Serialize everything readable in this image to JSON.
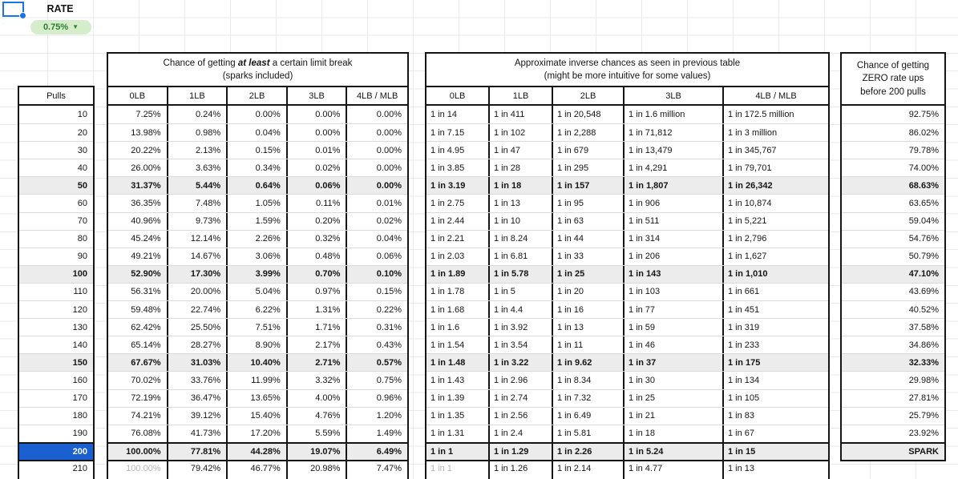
{
  "header": {
    "rate_label": "RATE",
    "rate_value": "0.75%"
  },
  "pulls_column": {
    "header": "Pulls",
    "values": [
      "10",
      "20",
      "30",
      "40",
      "50",
      "60",
      "70",
      "80",
      "90",
      "100",
      "110",
      "120",
      "130",
      "140",
      "150",
      "160",
      "170",
      "180",
      "190",
      "200"
    ],
    "partial_value": "210"
  },
  "at_least_table": {
    "title_prefix": "Chance of getting ",
    "title_emphasis": "at least",
    "title_suffix": " a certain limit break",
    "subtitle": "(sparks included)",
    "columns": [
      "0LB",
      "1LB",
      "2LB",
      "3LB",
      "4LB / MLB"
    ],
    "rows": [
      [
        "7.25%",
        "0.24%",
        "0.00%",
        "0.00%",
        "0.00%"
      ],
      [
        "13.98%",
        "0.98%",
        "0.04%",
        "0.00%",
        "0.00%"
      ],
      [
        "20.22%",
        "2.13%",
        "0.15%",
        "0.01%",
        "0.00%"
      ],
      [
        "26.00%",
        "3.63%",
        "0.34%",
        "0.02%",
        "0.00%"
      ],
      [
        "31.37%",
        "5.44%",
        "0.64%",
        "0.06%",
        "0.00%"
      ],
      [
        "36.35%",
        "7.48%",
        "1.05%",
        "0.11%",
        "0.01%"
      ],
      [
        "40.96%",
        "9.73%",
        "1.59%",
        "0.20%",
        "0.02%"
      ],
      [
        "45.24%",
        "12.14%",
        "2.26%",
        "0.32%",
        "0.04%"
      ],
      [
        "49.21%",
        "14.67%",
        "3.06%",
        "0.48%",
        "0.06%"
      ],
      [
        "52.90%",
        "17.30%",
        "3.99%",
        "0.70%",
        "0.10%"
      ],
      [
        "56.31%",
        "20.00%",
        "5.04%",
        "0.97%",
        "0.15%"
      ],
      [
        "59.48%",
        "22.74%",
        "6.22%",
        "1.31%",
        "0.22%"
      ],
      [
        "62.42%",
        "25.50%",
        "7.51%",
        "1.71%",
        "0.31%"
      ],
      [
        "65.14%",
        "28.27%",
        "8.90%",
        "2.17%",
        "0.43%"
      ],
      [
        "67.67%",
        "31.03%",
        "10.40%",
        "2.71%",
        "0.57%"
      ],
      [
        "70.02%",
        "33.76%",
        "11.99%",
        "3.32%",
        "0.75%"
      ],
      [
        "72.19%",
        "36.47%",
        "13.65%",
        "4.00%",
        "0.96%"
      ],
      [
        "74.21%",
        "39.12%",
        "15.40%",
        "4.76%",
        "1.20%"
      ],
      [
        "76.08%",
        "41.73%",
        "17.20%",
        "5.59%",
        "1.49%"
      ],
      [
        "100.00%",
        "77.81%",
        "44.28%",
        "19.07%",
        "6.49%"
      ]
    ],
    "partial_row": [
      "100.00%",
      "79.42%",
      "46.77%",
      "20.98%",
      "7.47%"
    ]
  },
  "inverse_table": {
    "title_line1": "Approximate inverse chances as seen in previous table",
    "title_line2": "(might be more intuitive for some values)",
    "columns": [
      "0LB",
      "1LB",
      "2LB",
      "3LB",
      "4LB / MLB"
    ],
    "rows": [
      [
        "1 in 14",
        "1 in 411",
        "1 in 20,548",
        "1 in 1.6 million",
        "1 in 172.5 million"
      ],
      [
        "1 in 7.15",
        "1 in 102",
        "1 in 2,288",
        "1 in 71,812",
        "1 in 3 million"
      ],
      [
        "1 in 4.95",
        "1 in 47",
        "1 in 679",
        "1 in 13,479",
        "1 in 345,767"
      ],
      [
        "1 in 3.85",
        "1 in 28",
        "1 in 295",
        "1 in 4,291",
        "1 in 79,701"
      ],
      [
        "1 in 3.19",
        "1 in 18",
        "1 in 157",
        "1 in 1,807",
        "1 in 26,342"
      ],
      [
        "1 in 2.75",
        "1 in 13",
        "1 in 95",
        "1 in 906",
        "1 in 10,874"
      ],
      [
        "1 in 2.44",
        "1 in 10",
        "1 in 63",
        "1 in 511",
        "1 in 5,221"
      ],
      [
        "1 in 2.21",
        "1 in 8.24",
        "1 in 44",
        "1 in 314",
        "1 in 2,796"
      ],
      [
        "1 in 2.03",
        "1 in 6.81",
        "1 in 33",
        "1 in 206",
        "1 in 1,627"
      ],
      [
        "1 in 1.89",
        "1 in 5.78",
        "1 in 25",
        "1 in 143",
        "1 in 1,010"
      ],
      [
        "1 in 1.78",
        "1 in 5",
        "1 in 20",
        "1 in 103",
        "1 in 661"
      ],
      [
        "1 in 1.68",
        "1 in 4.4",
        "1 in 16",
        "1 in 77",
        "1 in 451"
      ],
      [
        "1 in 1.6",
        "1 in 3.92",
        "1 in 13",
        "1 in 59",
        "1 in 319"
      ],
      [
        "1 in 1.54",
        "1 in 3.54",
        "1 in 11",
        "1 in 46",
        "1 in 233"
      ],
      [
        "1 in 1.48",
        "1 in 3.22",
        "1 in 9.62",
        "1 in 37",
        "1 in 175"
      ],
      [
        "1 in 1.43",
        "1 in 2.96",
        "1 in 8.34",
        "1 in 30",
        "1 in 134"
      ],
      [
        "1 in 1.39",
        "1 in 2.74",
        "1 in 7.32",
        "1 in 25",
        "1 in 105"
      ],
      [
        "1 in 1.35",
        "1 in 2.56",
        "1 in 6.49",
        "1 in 21",
        "1 in 83"
      ],
      [
        "1 in 1.31",
        "1 in 2.4",
        "1 in 5.81",
        "1 in 18",
        "1 in 67"
      ],
      [
        "1 in 1",
        "1 in 1.29",
        "1 in 2.26",
        "1 in 5.24",
        "1 in 15"
      ]
    ],
    "partial_row": [
      "1 in 1",
      "1 in 1.26",
      "1 in 2.14",
      "1 in 4.77",
      "1 in 13"
    ]
  },
  "zero_column": {
    "title_lines": [
      "Chance of getting",
      "ZERO rate ups",
      "before 200 pulls"
    ],
    "values": [
      "92.75%",
      "86.02%",
      "79.78%",
      "74.00%",
      "68.63%",
      "63.65%",
      "59.04%",
      "54.76%",
      "50.79%",
      "47.10%",
      "43.69%",
      "40.52%",
      "37.58%",
      "34.86%",
      "32.33%",
      "29.98%",
      "27.81%",
      "25.79%",
      "23.92%",
      "SPARK"
    ]
  },
  "milestone_row_indexes": [
    4,
    9,
    14,
    19
  ],
  "colors": {
    "accent_blue": "#1a5fd0",
    "selection_blue": "#1a73e8",
    "chip_green_bg": "#d6edcc",
    "chip_green_text": "#2b7d33",
    "milestone_gray": "#ececec",
    "border_dark": "#151515",
    "dim_text": "#b5b5b5"
  }
}
